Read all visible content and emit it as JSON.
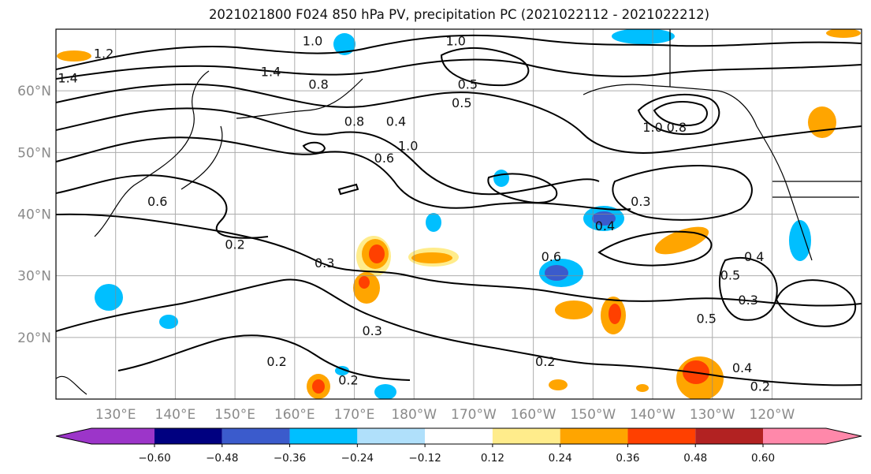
{
  "title": "2021021800 F024 850 hPa PV, precipitation PC (2021022112 - 2021022212)",
  "map": {
    "region": "North Pacific",
    "lat_labels": [
      "60°N",
      "50°N",
      "40°N",
      "30°N",
      "20°N"
    ],
    "lat_values": [
      60,
      50,
      40,
      30,
      20
    ],
    "lon_labels": [
      "130°E",
      "140°E",
      "150°E",
      "160°E",
      "170°E",
      "180°W",
      "170°W",
      "160°W",
      "150°W",
      "140°W",
      "130°W",
      "120°W"
    ],
    "lon_values": [
      130,
      140,
      150,
      160,
      170,
      180,
      190,
      200,
      210,
      220,
      230,
      240
    ],
    "lat_range": [
      10,
      70
    ],
    "lon_range": [
      120,
      255
    ],
    "contour_labels": [
      {
        "text": "1.0",
        "lon": 163,
        "lat": 68
      },
      {
        "text": "1.0",
        "lon": 187,
        "lat": 68
      },
      {
        "text": "1.2",
        "lon": 128,
        "lat": 66
      },
      {
        "text": "1.4",
        "lon": 122,
        "lat": 62
      },
      {
        "text": "1.4",
        "lon": 156,
        "lat": 63
      },
      {
        "text": "0.8",
        "lon": 164,
        "lat": 61
      },
      {
        "text": "0.5",
        "lon": 189,
        "lat": 61
      },
      {
        "text": "0.5",
        "lon": 188,
        "lat": 58
      },
      {
        "text": "0.4",
        "lon": 177,
        "lat": 55
      },
      {
        "text": "0.8",
        "lon": 170,
        "lat": 55
      },
      {
        "text": "1.0",
        "lon": 179,
        "lat": 51
      },
      {
        "text": "0.6",
        "lon": 175,
        "lat": 49
      },
      {
        "text": "1.0",
        "lon": 220,
        "lat": 54
      },
      {
        "text": "0.8",
        "lon": 224,
        "lat": 54
      },
      {
        "text": "0.6",
        "lon": 137,
        "lat": 42
      },
      {
        "text": "0.2",
        "lon": 150,
        "lat": 35
      },
      {
        "text": "0.3",
        "lon": 165,
        "lat": 32
      },
      {
        "text": "0.3",
        "lon": 218,
        "lat": 42
      },
      {
        "text": "0.4",
        "lon": 212,
        "lat": 38
      },
      {
        "text": "0.6",
        "lon": 203,
        "lat": 33
      },
      {
        "text": "0.5",
        "lon": 233,
        "lat": 30
      },
      {
        "text": "0.4",
        "lon": 237,
        "lat": 33
      },
      {
        "text": "0.3",
        "lon": 236,
        "lat": 26
      },
      {
        "text": "0.5",
        "lon": 229,
        "lat": 23
      },
      {
        "text": "0.3",
        "lon": 173,
        "lat": 21
      },
      {
        "text": "0.2",
        "lon": 157,
        "lat": 16
      },
      {
        "text": "0.2",
        "lon": 169,
        "lat": 13
      },
      {
        "text": "0.2",
        "lon": 202,
        "lat": 16
      },
      {
        "text": "0.4",
        "lon": 235,
        "lat": 15
      },
      {
        "text": "0.2",
        "lon": 238,
        "lat": 12
      }
    ]
  },
  "colorbar": {
    "ticks": [
      "−0.60",
      "−0.48",
      "−0.36",
      "−0.24",
      "−0.12",
      "0.12",
      "0.24",
      "0.36",
      "0.48",
      "0.60"
    ],
    "colors": [
      "#9c35c9",
      "#000080",
      "#3b5bcc",
      "#00bfff",
      "#b0e0fb",
      "#ffffff",
      "#ffec8b",
      "#ffa500",
      "#ff4000",
      "#b22222",
      "#ff88aa"
    ],
    "extend": "both"
  }
}
